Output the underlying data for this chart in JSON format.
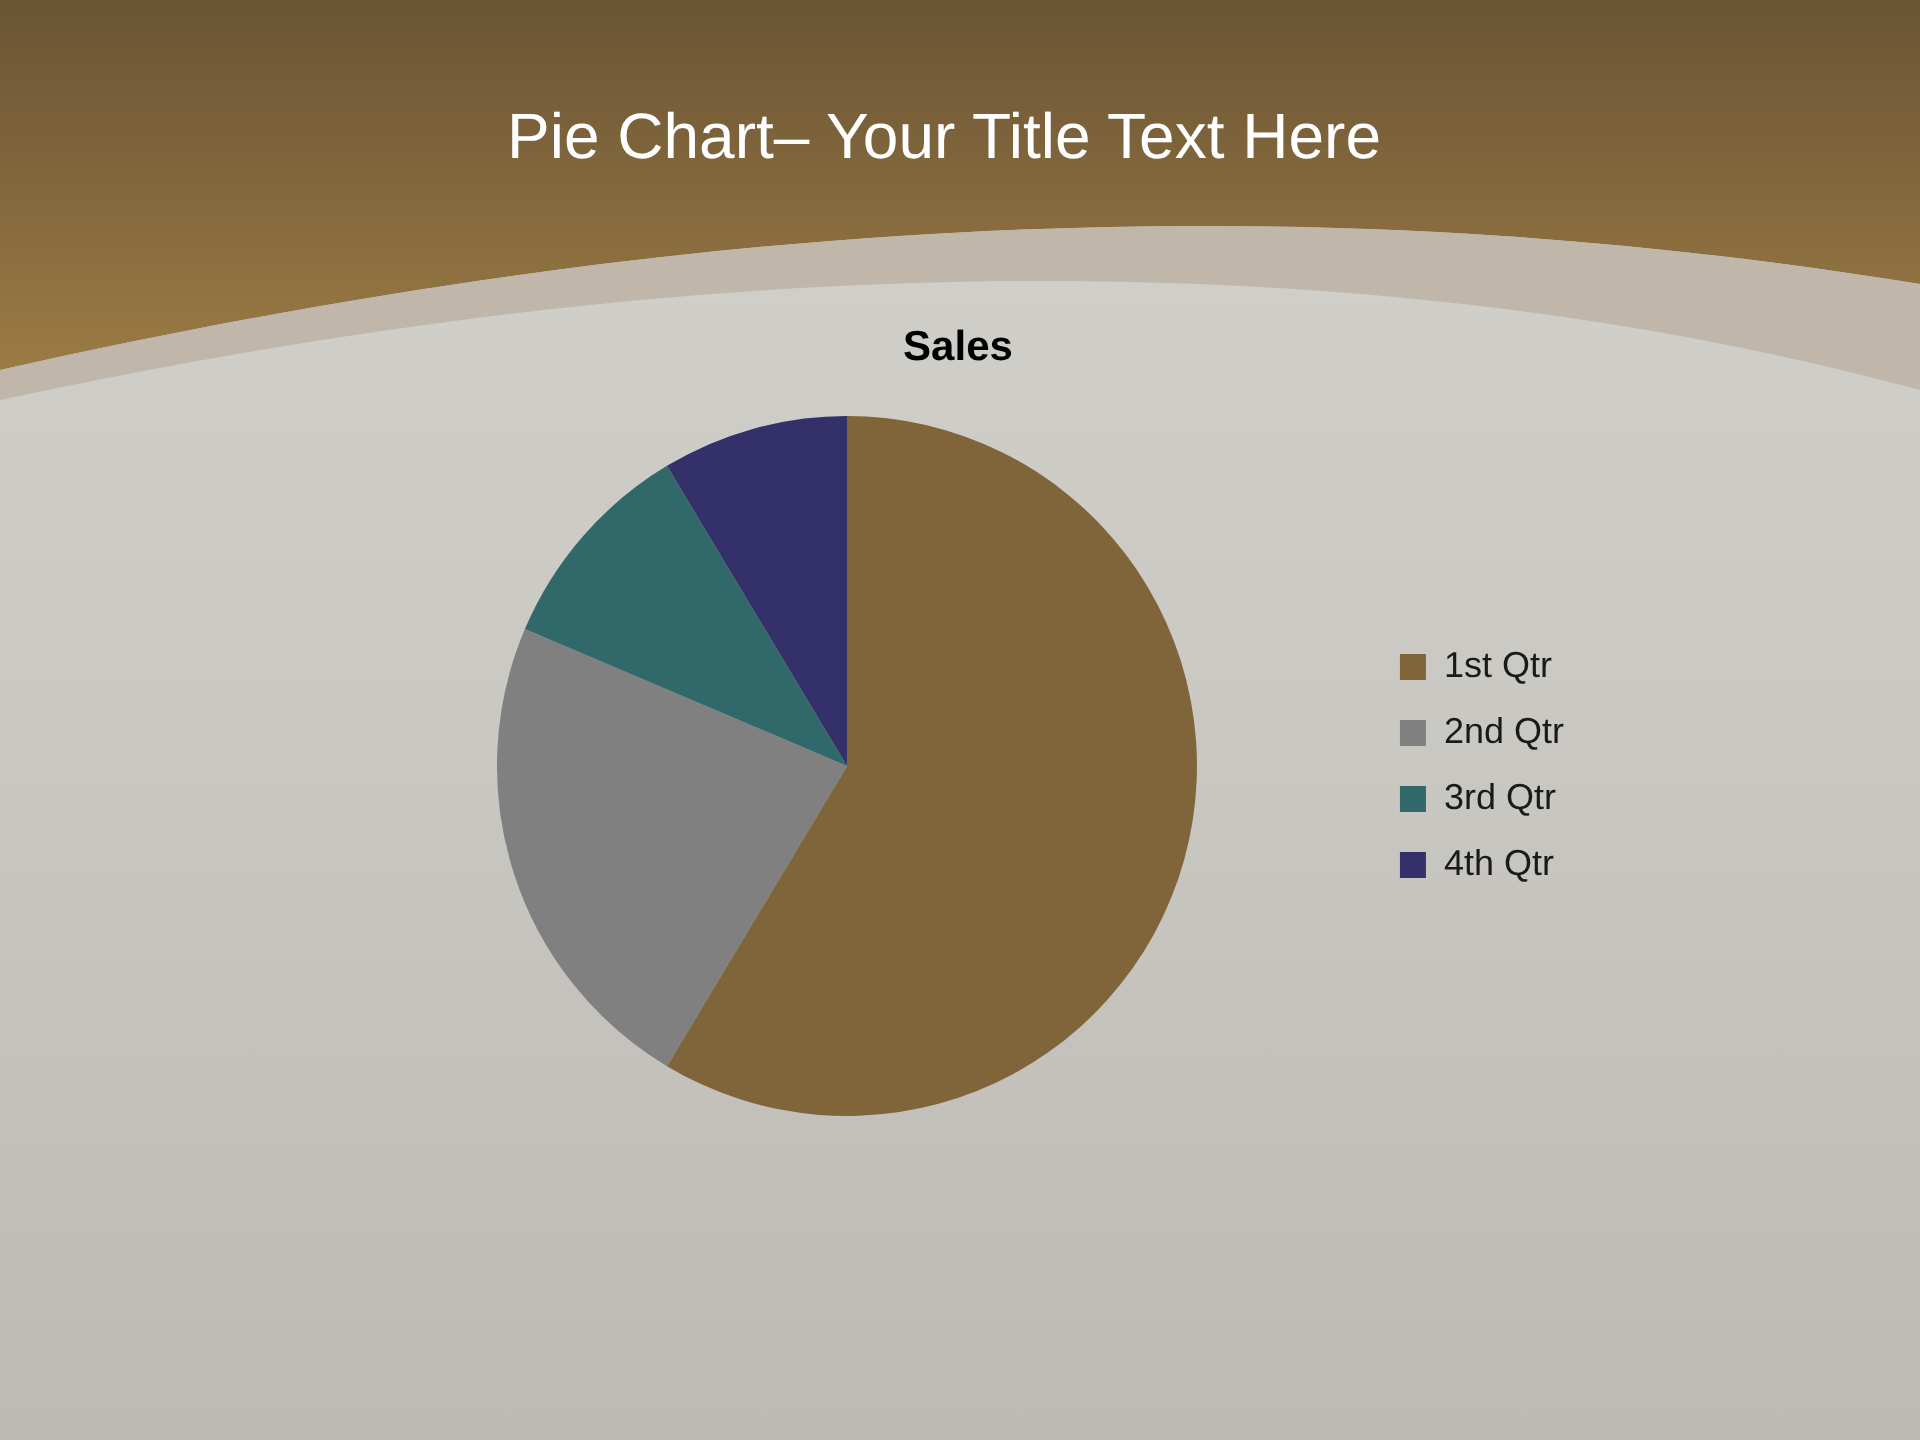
{
  "chart_data": {
    "type": "pie",
    "title": "Pie Chart– Your Title Text Here",
    "subtitle": "Sales",
    "categories": [
      "1st Qtr",
      "2nd Qtr",
      "3rd Qtr",
      "4th Qtr"
    ],
    "values": [
      58.6,
      22.8,
      10,
      8.6
    ],
    "colors": [
      "#7f6539",
      "#808080",
      "#31696a",
      "#33306a"
    ],
    "legend": "right"
  }
}
